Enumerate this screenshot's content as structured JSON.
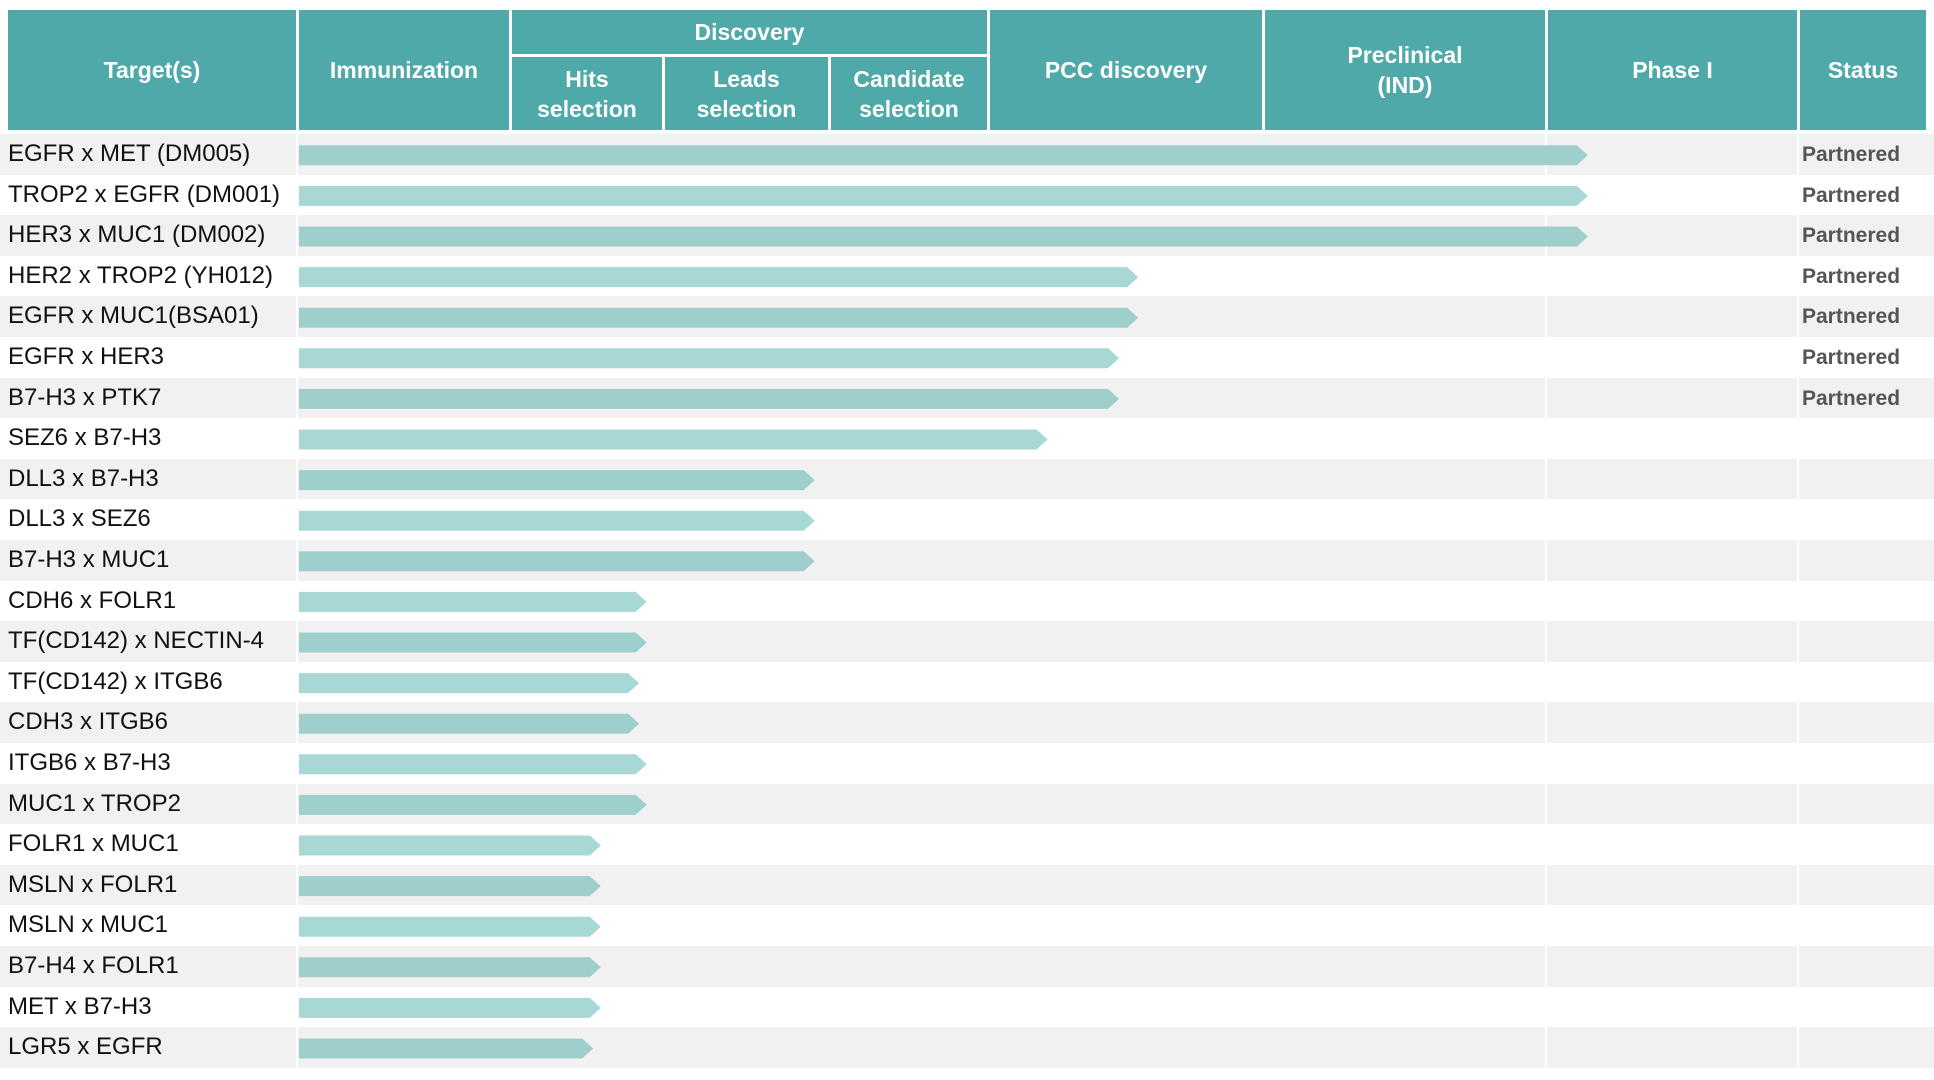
{
  "header": {
    "targets": "Target(s)",
    "immunization": "Immunization",
    "discovery": "Discovery",
    "hits": "Hits\nselection",
    "leads": "Leads\nselection",
    "candidate": "Candidate\nselection",
    "pcc": "PCC discovery",
    "preclinical": "Preclinical\n(IND)",
    "phase1": "Phase I",
    "status": "Status"
  },
  "colors": {
    "header_bg": "#4fa9a9",
    "bar_a": "#a8d8d5",
    "bar_b": "#9fcfcc",
    "row_alt": "#f1f1f1",
    "status_text": "#555555"
  },
  "chart_data": {
    "type": "bar",
    "stages": [
      "Immunization",
      "Hits selection",
      "Leads selection",
      "Candidate selection",
      "PCC discovery",
      "Preclinical (IND)",
      "Phase I"
    ],
    "categories": [
      "EGFR x MET (DM005)",
      "TROP2 x EGFR (DM001)",
      "HER3 x MUC1 (DM002)",
      "HER2 x TROP2 (YH012)",
      "EGFR x MUC1(BSA01)",
      "EGFR x HER3",
      "B7-H3 x PTK7",
      "SEZ6 x B7-H3",
      "DLL3 x B7-H3",
      "DLL3 x SEZ6",
      "B7-H3 x MUC1",
      "CDH6 x FOLR1",
      "TF(CD142) x NECTIN-4",
      "TF(CD142) x ITGB6",
      "CDH3 x ITGB6",
      "ITGB6 x B7-H3",
      "MUC1 x TROP2",
      "FOLR1 x MUC1",
      "MSLN x FOLR1",
      "MSLN x MUC1",
      "B7-H4 x FOLR1",
      "MET x B7-H3",
      "LGR5 x EGFR"
    ],
    "progress": [
      6.17,
      6.17,
      6.17,
      4.55,
      4.55,
      4.48,
      4.48,
      4.22,
      2.92,
      2.92,
      2.92,
      1.9,
      1.9,
      1.85,
      1.85,
      1.9,
      1.9,
      1.6,
      1.6,
      1.6,
      1.6,
      1.6,
      1.55
    ],
    "status": [
      "Partnered",
      "Partnered",
      "Partnered",
      "Partnered",
      "Partnered",
      "Partnered",
      "Partnered",
      "",
      "",
      "",
      "",
      "",
      "",
      "",
      "",
      "",
      "",
      "",
      "",
      "",
      "",
      "",
      ""
    ]
  }
}
